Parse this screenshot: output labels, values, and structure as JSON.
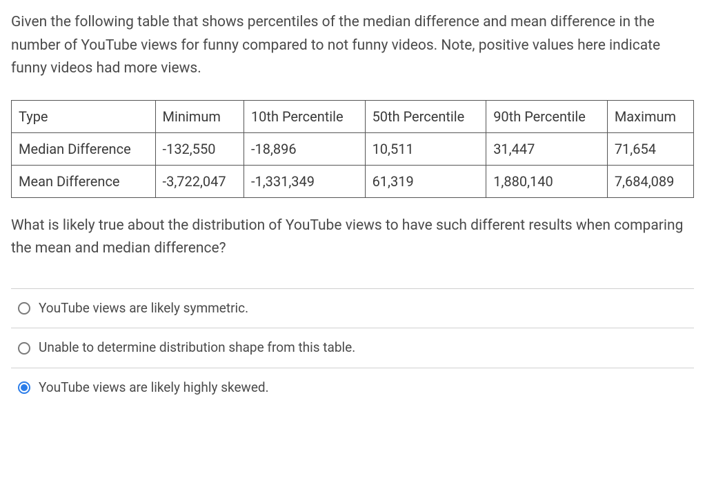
{
  "question": {
    "intro": "Given the following table that shows percentiles of the median difference and mean difference in the number of YouTube views for funny compared to not funny videos. Note, positive values here indicate funny videos had more views.",
    "followup": "What is likely true about the distribution of YouTube views to have such different results when comparing the mean and median difference?"
  },
  "table": {
    "type": "table",
    "headers": {
      "c0": "Type",
      "c1": "Minimum",
      "c2": "10th Percentile",
      "c3": "50th Percentile",
      "c4": "90th Percentile",
      "c5": "Maximum"
    },
    "rows": [
      {
        "c0": "Median Difference",
        "c1": "-132,550",
        "c2": "-18,896",
        "c3": "10,511",
        "c4": "31,447",
        "c5": "71,654"
      },
      {
        "c0": "Mean Difference",
        "c1": "-3,722,047",
        "c2": "-1,331,349",
        "c3": "61,319",
        "c4": "1,880,140",
        "c5": "7,684,089"
      }
    ],
    "border_color": "#555555",
    "text_color": "#3a3a3a",
    "cell_fontsize": 20
  },
  "options": [
    {
      "label": "YouTube views are likely symmetric.",
      "selected": false
    },
    {
      "label": "Unable to determine distribution shape from this table.",
      "selected": false
    },
    {
      "label": "YouTube views are likely highly skewed.",
      "selected": true
    }
  ],
  "styling": {
    "background_color": "#ffffff",
    "body_text_color": "#4a4a4a",
    "option_border_color": "#d0d0d0",
    "radio_unselected_border": "#7a7a7a",
    "radio_selected_color": "#2b7de9",
    "body_fontsize": 21,
    "option_fontsize": 19
  }
}
